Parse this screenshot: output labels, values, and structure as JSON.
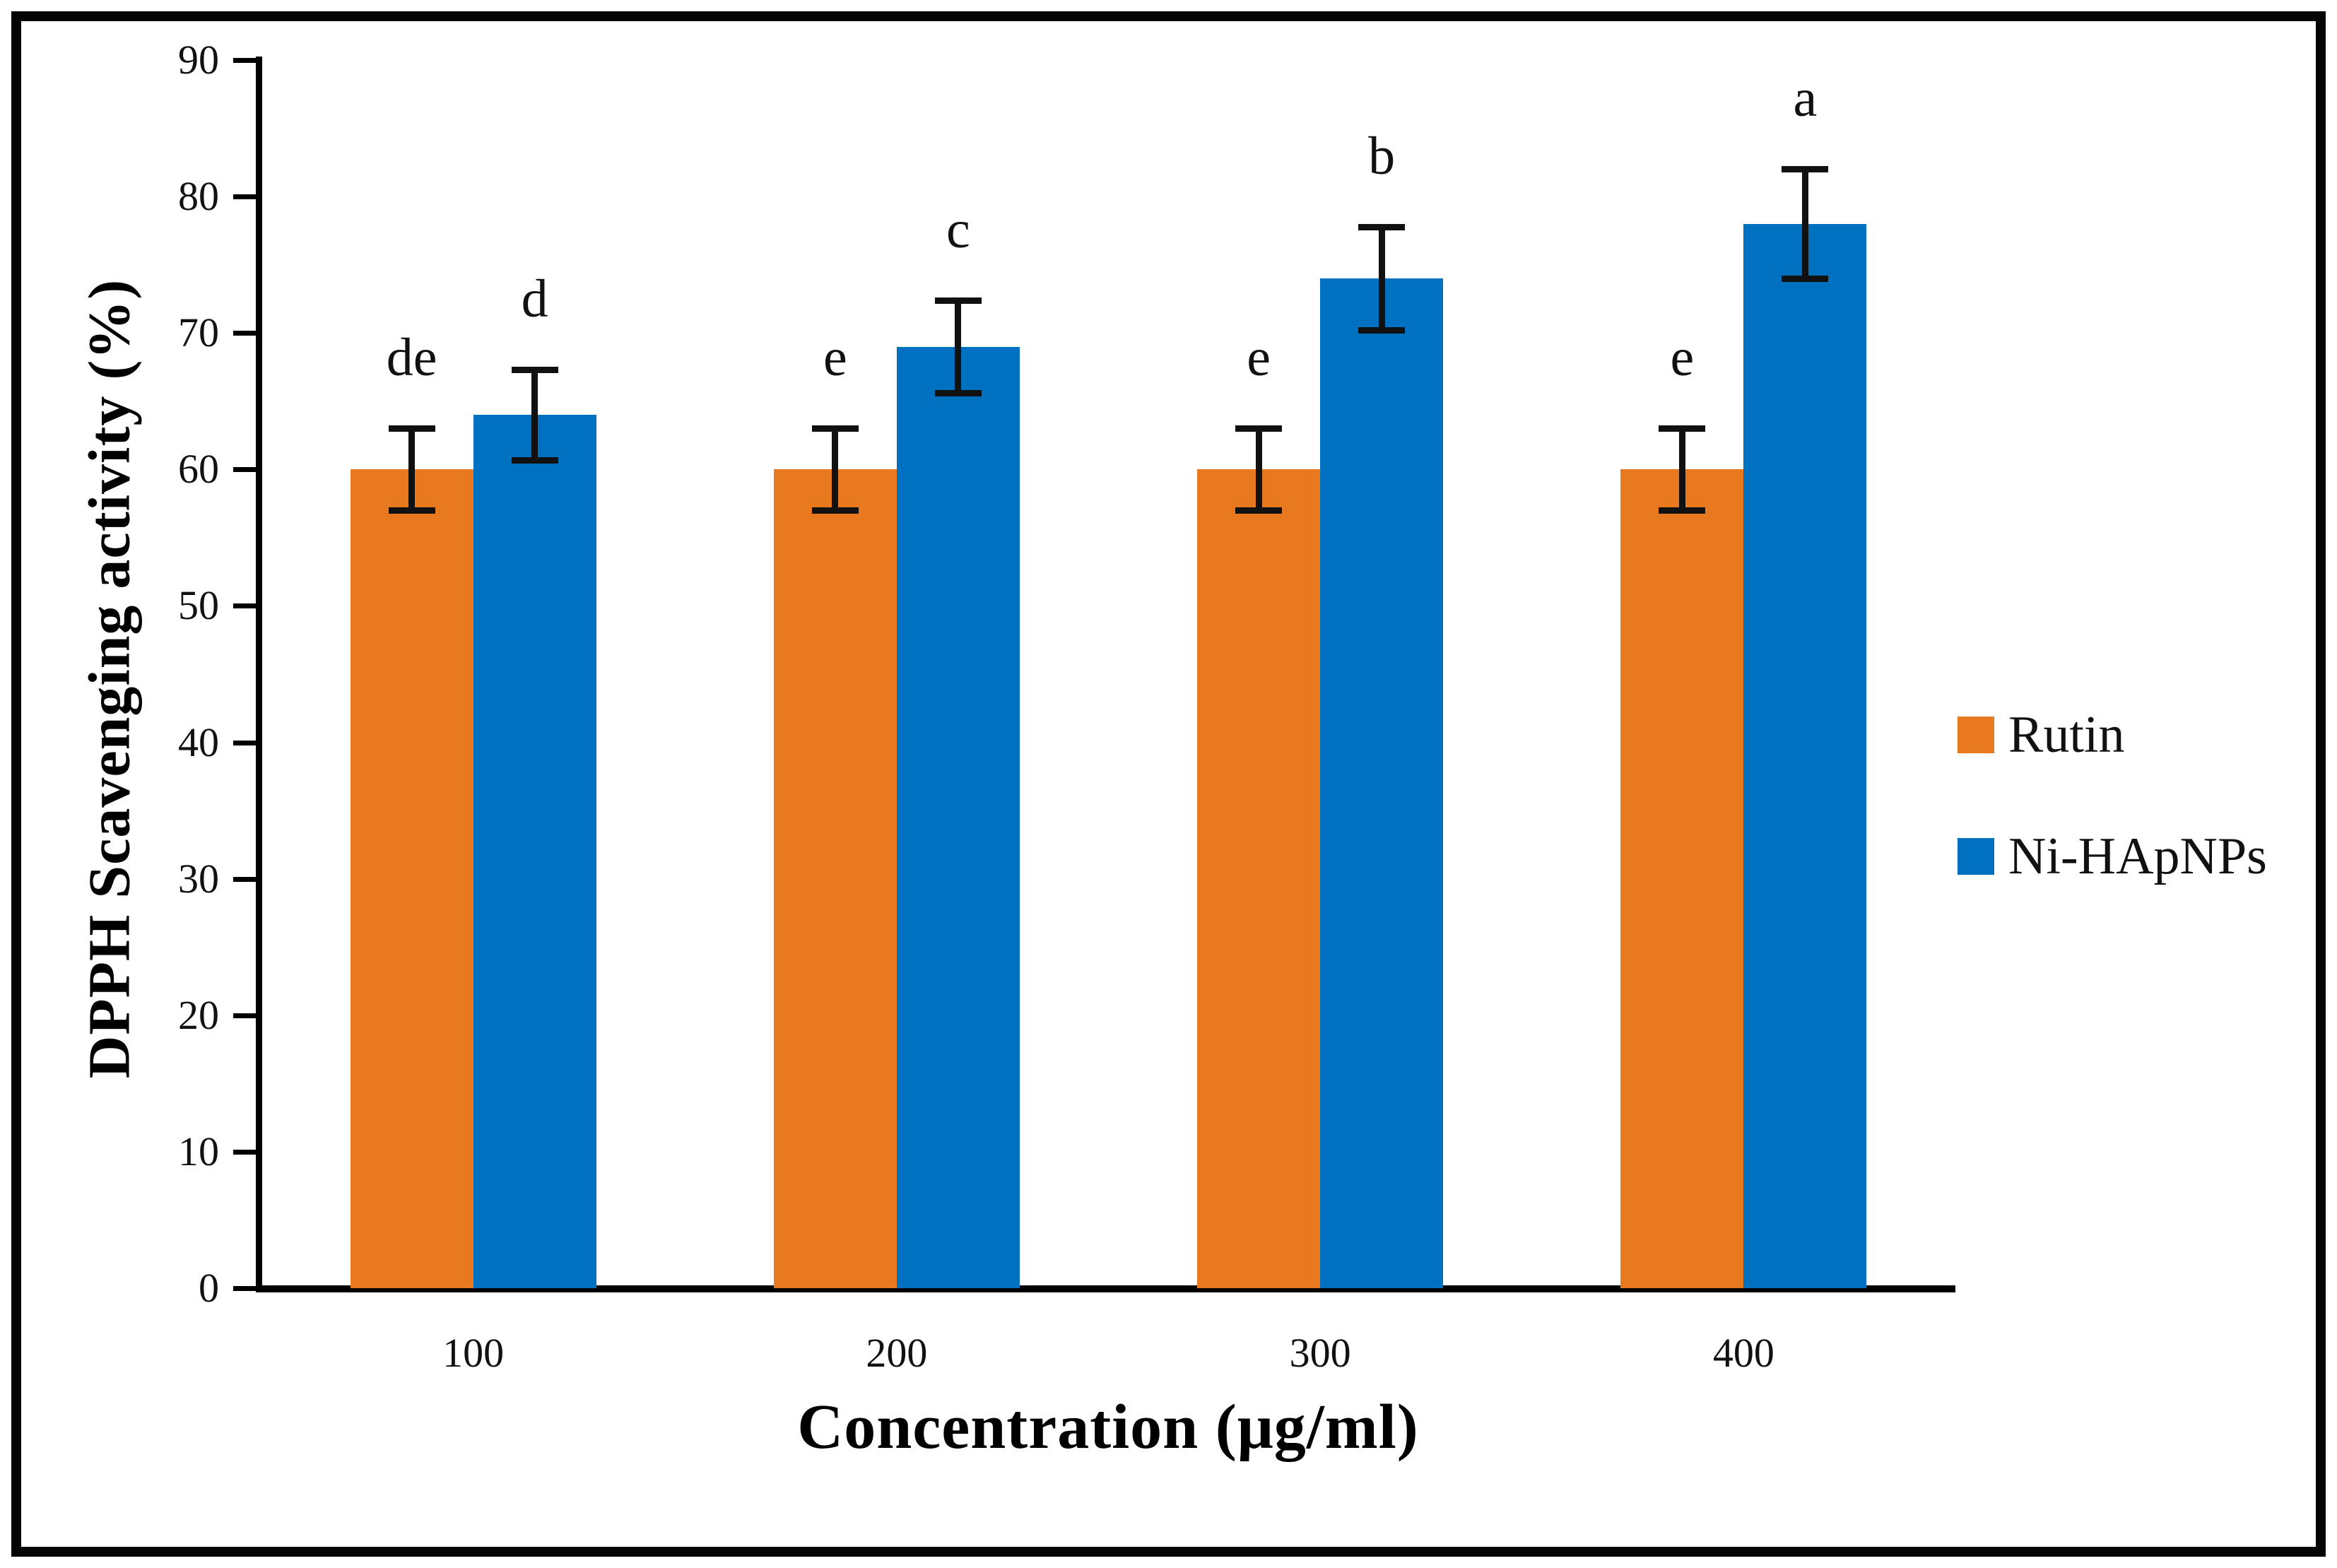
{
  "chart_data": {
    "type": "bar",
    "title": "",
    "xlabel": "Concentration (μg/ml)",
    "ylabel": "DPPH Scavenging activity (%)",
    "ylim": [
      0,
      90
    ],
    "yticks": [
      0,
      10,
      20,
      30,
      40,
      50,
      60,
      70,
      80,
      90
    ],
    "categories": [
      "100",
      "200",
      "300",
      "400"
    ],
    "grid": false,
    "legend_position": "right",
    "axis_color": "#000000",
    "series": [
      {
        "name": "Rutin",
        "color": "#E8791F",
        "values": [
          60,
          60,
          60,
          60
        ],
        "errors": [
          3,
          3,
          3,
          3
        ],
        "sig_letters": [
          "de",
          "e",
          "e",
          "e"
        ]
      },
      {
        "name": "Ni-HApNPs",
        "color": "#0070C0",
        "values": [
          64,
          69,
          74,
          78
        ],
        "errors": [
          3.3,
          3.4,
          3.8,
          4
        ],
        "sig_letters": [
          "d",
          "c",
          "b",
          "a"
        ]
      }
    ]
  }
}
